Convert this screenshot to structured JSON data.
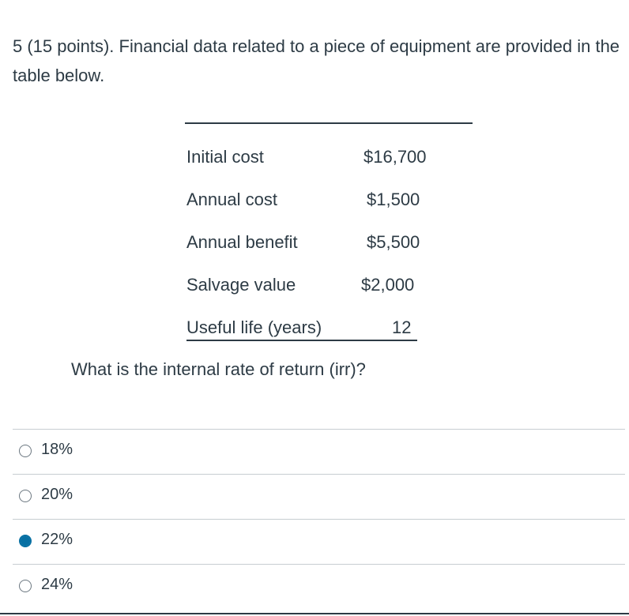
{
  "question": {
    "text": "5 (15 points).  Financial data related to a piece of equipment are provided in the table below."
  },
  "table": {
    "rows": [
      {
        "label": "Initial cost",
        "value": "$16,700"
      },
      {
        "label": "Annual cost",
        "value": "$1,500"
      },
      {
        "label": "Annual benefit",
        "value": "$5,500"
      },
      {
        "label": "Salvage value",
        "value": "$2,000"
      },
      {
        "label": "Useful life (years)",
        "value": "12"
      }
    ]
  },
  "sub_question": "What is the internal rate of return (irr)?",
  "answers": [
    {
      "label": "18%",
      "selected": false
    },
    {
      "label": "20%",
      "selected": false
    },
    {
      "label": "22%",
      "selected": true
    },
    {
      "label": "24%",
      "selected": false
    }
  ]
}
